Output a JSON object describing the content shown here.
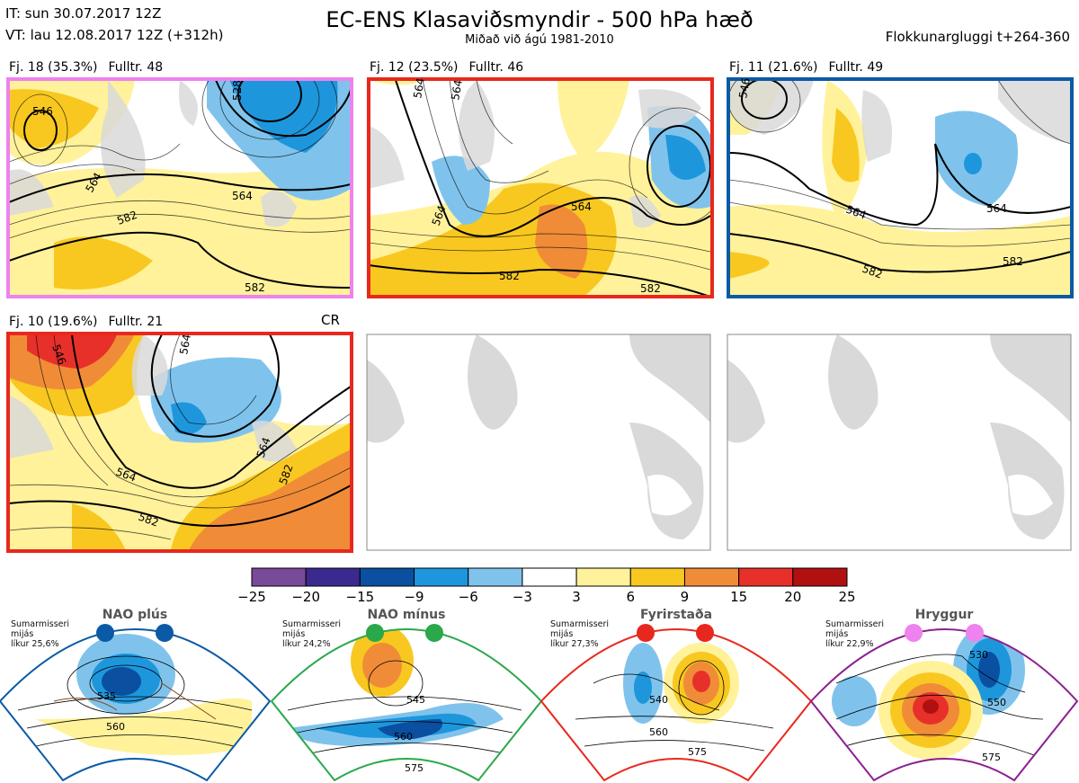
{
  "header": {
    "it_line": "IT: sun 30.07.2017 12Z",
    "vt_line": "VT: lau 12.08.2017 12Z  (+312h)",
    "title": "EC-ENS Klasaviðsmyndir - 500 hPa hæð",
    "subtitle": "Miðað við ágú 1981-2010",
    "window": "Flokkunargluggi t+264-360"
  },
  "panels": [
    {
      "fj": "Fj. 18 (35.3%)",
      "fulltr": "Fulltr. 48",
      "border": "#ee82ee",
      "contours": [
        "546",
        "564",
        "582",
        "582",
        "564",
        "528"
      ]
    },
    {
      "fj": "Fj. 12 (23.5%)",
      "fulltr": "Fulltr. 46",
      "border": "#e8281e",
      "contours": [
        "564",
        "564",
        "582",
        "582",
        "564",
        "564"
      ]
    },
    {
      "fj": "Fj. 11 (21.6%)",
      "fulltr": "Fulltr. 49",
      "border": "#0a5aa5",
      "contours": [
        "546",
        "564",
        "564",
        "582",
        "582"
      ]
    },
    {
      "fj": "Fj. 10 (19.6%)",
      "fulltr": "Fulltr. 21",
      "border": "#e8281e",
      "contours": [
        "546",
        "564",
        "564",
        "582",
        "582",
        "564"
      ]
    }
  ],
  "cr_label": "CR",
  "colorbar": {
    "ticks": [
      "−25",
      "−20",
      "−15",
      "−9",
      "−6",
      "−3",
      "3",
      "6",
      "9",
      "15",
      "20",
      "25"
    ],
    "colors": [
      "#7a4a9a",
      "#3a2a90",
      "#0a4fa0",
      "#1e96dc",
      "#7fc3ec",
      "#ffffff",
      "#fff29a",
      "#f8c820",
      "#f08c38",
      "#e8302a",
      "#b01010"
    ]
  },
  "regimes": [
    {
      "name": "NAO plús",
      "season": "Sumarmisseri",
      "period": "mijás",
      "likur": "líkur 25,6%",
      "color": "#0a5aa5",
      "contours": [
        "535",
        "560"
      ]
    },
    {
      "name": "NAO mínus",
      "season": "Sumarmisseri",
      "period": "mijás",
      "likur": "líkur 24,2%",
      "color": "#2aa84a",
      "contours": [
        "545",
        "560",
        "575"
      ]
    },
    {
      "name": "Fyrirstaða",
      "season": "Sumarmisseri",
      "period": "mijás",
      "likur": "líkur 27,3%",
      "color": "#e8281e",
      "contours": [
        "540",
        "560",
        "575"
      ]
    },
    {
      "name": "Hryggur",
      "season": "Sumarmisseri",
      "period": "mijás",
      "likur": "líkur 22,9%",
      "color": "#ee82ee",
      "contours": [
        "530",
        "550",
        "575"
      ]
    }
  ]
}
